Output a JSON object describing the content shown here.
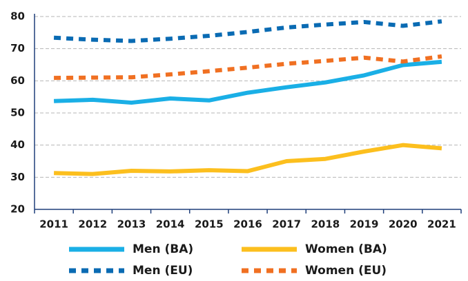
{
  "chart_data": {
    "type": "line",
    "categories": [
      "2011",
      "2012",
      "2013",
      "2014",
      "2015",
      "2016",
      "2017",
      "2018",
      "2019",
      "2020",
      "2021"
    ],
    "series": [
      {
        "name": "Men (BA)",
        "color": "#1aafe6",
        "dashed": false,
        "values": [
          53.7,
          54.1,
          53.2,
          54.5,
          53.9,
          56.3,
          58,
          59.5,
          61.7,
          64.9,
          65.9
        ]
      },
      {
        "name": "Women (BA)",
        "color": "#fcbf1e",
        "dashed": false,
        "values": [
          31.3,
          31,
          32,
          31.8,
          32.2,
          31.9,
          35,
          35.7,
          38,
          40,
          39
        ]
      },
      {
        "name": "Men (EU)",
        "color": "#0a6bb3",
        "dashed": true,
        "values": [
          73.4,
          72.8,
          72.4,
          73.1,
          74,
          75.2,
          76.6,
          77.5,
          78.3,
          77.1,
          78.5
        ]
      },
      {
        "name": "Women (EU)",
        "color": "#f07022",
        "dashed": true,
        "values": [
          60.9,
          61,
          61.1,
          62,
          63,
          64.1,
          65.3,
          66.2,
          67.2,
          66,
          67.6
        ]
      }
    ],
    "ylim": [
      20,
      80
    ],
    "yticks": [
      20,
      30,
      40,
      50,
      60,
      70,
      80
    ],
    "grid": true
  }
}
